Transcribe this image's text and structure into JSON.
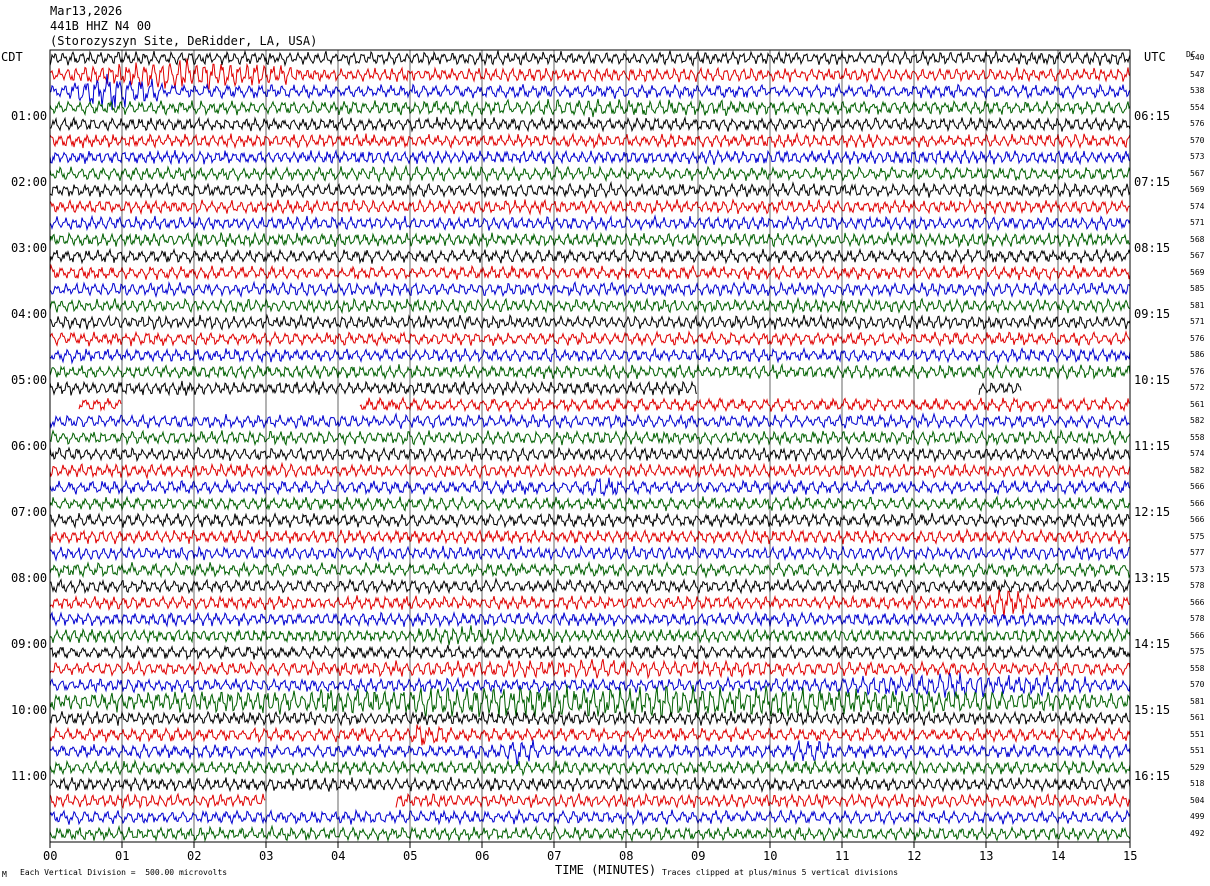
{
  "header": {
    "date": "Mar13,2026",
    "station": "441B HHZ N4 00",
    "site": "(Storozyszyn Site, DeRidder, LA, USA)"
  },
  "left_tz": "CDT",
  "right_tz": "UTC",
  "dc_label": "DC",
  "footer": {
    "scale_note": "Each Vertical Division =  500.00 microvolts",
    "xlabel": "TIME (MINUTES)",
    "clip_note": "Traces clipped at plus/minus 5 vertical divisions",
    "corner_mark": "M"
  },
  "colors": {
    "trace_cycle": [
      "#000000",
      "#e00000",
      "#0000d0",
      "#006000"
    ]
  },
  "chart_data": {
    "type": "line",
    "title": "",
    "xlabel": "TIME (MINUTES)",
    "ylabel": "",
    "xlim": [
      0,
      15
    ],
    "x_ticks": [
      "00",
      "01",
      "02",
      "03",
      "04",
      "05",
      "06",
      "07",
      "08",
      "09",
      "10",
      "11",
      "12",
      "13",
      "14",
      "15"
    ],
    "grid_x": true,
    "left_time_labels": [
      "01:00",
      "02:00",
      "03:00",
      "04:00",
      "05:00",
      "06:00",
      "07:00",
      "08:00",
      "09:00",
      "10:00",
      "11:00"
    ],
    "right_time_labels": [
      "06:15",
      "07:15",
      "08:15",
      "09:15",
      "10:15",
      "11:15",
      "12:15",
      "13:15",
      "14:15",
      "15:15",
      "16:15"
    ],
    "traces_per_hour": 4,
    "row_count": 48,
    "dc_offsets": [
      540,
      547,
      538,
      554,
      576,
      570,
      573,
      567,
      569,
      574,
      571,
      568,
      567,
      569,
      585,
      581,
      571,
      576,
      586,
      576,
      572,
      561,
      582,
      558,
      574,
      582,
      566,
      566,
      566,
      575,
      577,
      573,
      578,
      566,
      578,
      566,
      575,
      558,
      570,
      581,
      561,
      551,
      551,
      529,
      518,
      504,
      499,
      492
    ],
    "events": [
      {
        "trace": 1,
        "start_min": 0.2,
        "end_min": 3.5,
        "amplitude": 2.5
      },
      {
        "trace": 2,
        "start_min": 0.2,
        "end_min": 1.6,
        "amplitude": 3.0
      },
      {
        "trace": 3,
        "start_min": 0.0,
        "end_min": 15.0,
        "amplitude": 1.3
      },
      {
        "trace": 26,
        "start_min": 7.3,
        "end_min": 8.0,
        "amplitude": 2.0
      },
      {
        "trace": 33,
        "start_min": 12.8,
        "end_min": 13.8,
        "amplitude": 2.2
      },
      {
        "trace": 35,
        "start_min": 4.8,
        "end_min": 7.0,
        "amplitude": 1.6
      },
      {
        "trace": 37,
        "start_min": 0.0,
        "end_min": 15.0,
        "amplitude": 1.4
      },
      {
        "trace": 38,
        "start_min": 10.2,
        "end_min": 15.0,
        "amplitude": 1.9
      },
      {
        "trace": 39,
        "start_min": 0.0,
        "end_min": 15.0,
        "amplitude": 2.6
      },
      {
        "trace": 41,
        "start_min": 4.8,
        "end_min": 5.6,
        "amplitude": 2.0
      },
      {
        "trace": 42,
        "start_min": 6.2,
        "end_min": 6.9,
        "amplitude": 2.2
      },
      {
        "trace": 42,
        "start_min": 10.2,
        "end_min": 10.9,
        "amplitude": 2.2
      }
    ],
    "gaps": [
      {
        "trace": 20,
        "start_min": 9.0,
        "end_min": 12.9
      },
      {
        "trace": 20,
        "start_min": 13.5,
        "end_min": 15.0
      },
      {
        "trace": 21,
        "start_min": 0.0,
        "end_min": 0.4
      },
      {
        "trace": 21,
        "start_min": 1.0,
        "end_min": 4.3
      },
      {
        "trace": 45,
        "start_min": 3.0,
        "end_min": 4.8
      }
    ]
  }
}
